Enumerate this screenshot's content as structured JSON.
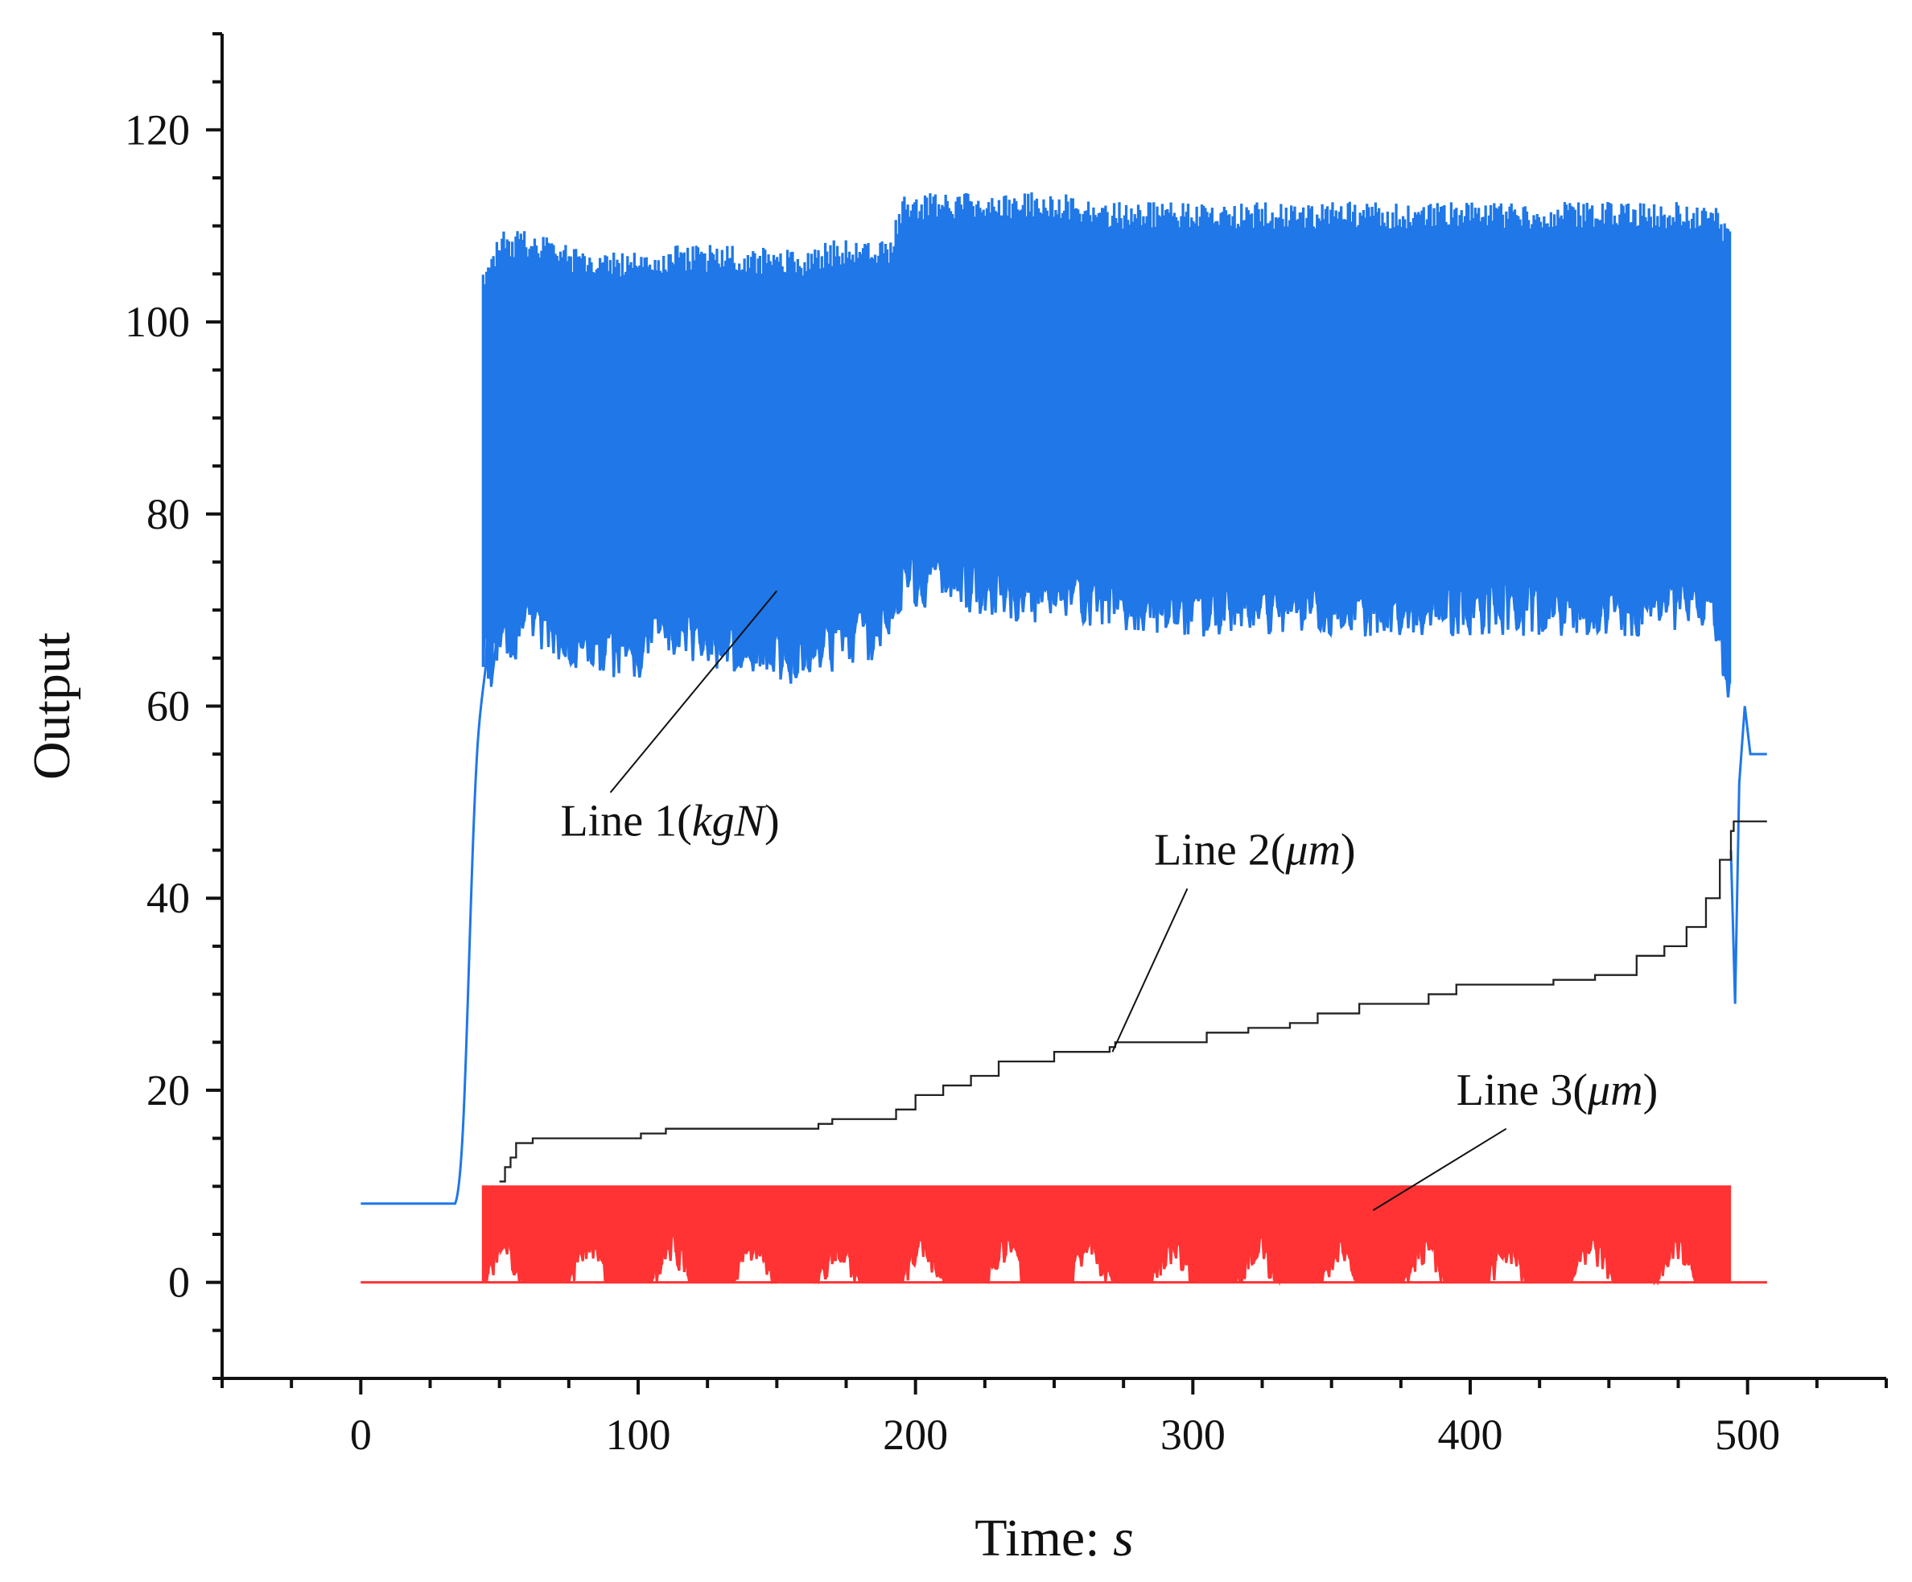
{
  "chart_data": {
    "type": "line",
    "title": "",
    "xlabel": "Time: s",
    "xlabel_parts": {
      "prefix": "Time: ",
      "unit": "s"
    },
    "ylabel": "Output",
    "xlim": [
      -50,
      550
    ],
    "ylim": [
      -10,
      130
    ],
    "xticks": [
      0,
      100,
      200,
      300,
      400,
      500
    ],
    "yticks": [
      0,
      20,
      40,
      60,
      80,
      100,
      120
    ],
    "x_minor_step": 25,
    "y_minor_step": 5,
    "grid": false,
    "colors": {
      "line1": "#1f77e8",
      "line2": "#222222",
      "line3": "#ff3333",
      "axis": "#111111"
    },
    "series": [
      {
        "name": "Line 1(kgN)",
        "label_prefix": "Line 1(",
        "label_unit": "kgN",
        "label_suffix": ")",
        "kind": "oscillating-band",
        "baseline": 8.2,
        "start_time": 38,
        "active_end_time": 494,
        "end_time": 507,
        "upper_envelope": [
          [
            44,
            104
          ],
          [
            50,
            108
          ],
          [
            60,
            108
          ],
          [
            80,
            106
          ],
          [
            105,
            106
          ],
          [
            110,
            106.5
          ],
          [
            130,
            106.5
          ],
          [
            160,
            106
          ],
          [
            170,
            107
          ],
          [
            190,
            107
          ],
          [
            196,
            112
          ],
          [
            250,
            112
          ],
          [
            270,
            111
          ],
          [
            300,
            111
          ],
          [
            350,
            111
          ],
          [
            400,
            111
          ],
          [
            450,
            111
          ],
          [
            470,
            111
          ],
          [
            488,
            111
          ],
          [
            494,
            108
          ]
        ],
        "lower_envelope": [
          [
            50,
            65
          ],
          [
            60,
            69
          ],
          [
            80,
            66
          ],
          [
            100,
            65
          ],
          [
            105,
            68
          ],
          [
            120,
            67
          ],
          [
            155,
            65
          ],
          [
            190,
            68
          ],
          [
            196,
            73
          ],
          [
            250,
            71
          ],
          [
            300,
            70
          ],
          [
            350,
            70
          ],
          [
            400,
            70
          ],
          [
            450,
            70
          ],
          [
            488,
            70
          ],
          [
            494,
            60
          ]
        ],
        "tail_points": [
          [
            494,
            45
          ],
          [
            495.5,
            29
          ],
          [
            497,
            52
          ],
          [
            499,
            60
          ],
          [
            501,
            55
          ],
          [
            507,
            55
          ]
        ]
      },
      {
        "name": "Line 2(μm)",
        "label_prefix": "Line 2(",
        "label_unit": "μm",
        "label_suffix": ")",
        "kind": "step",
        "points": [
          [
            50,
            10.5
          ],
          [
            52,
            12
          ],
          [
            54,
            13
          ],
          [
            56,
            14.5
          ],
          [
            60,
            14.5
          ],
          [
            62,
            15
          ],
          [
            100,
            15
          ],
          [
            101,
            15.5
          ],
          [
            110,
            16
          ],
          [
            150,
            16
          ],
          [
            165,
            16.5
          ],
          [
            170,
            17
          ],
          [
            190,
            17
          ],
          [
            193,
            18
          ],
          [
            200,
            19.5
          ],
          [
            210,
            20.5
          ],
          [
            220,
            21.5
          ],
          [
            230,
            23
          ],
          [
            250,
            24
          ],
          [
            270,
            24.5
          ],
          [
            272,
            25
          ],
          [
            300,
            25
          ],
          [
            305,
            26
          ],
          [
            320,
            26.5
          ],
          [
            335,
            27
          ],
          [
            345,
            28
          ],
          [
            360,
            29
          ],
          [
            385,
            30
          ],
          [
            395,
            31
          ],
          [
            430,
            31.5
          ],
          [
            445,
            32
          ],
          [
            460,
            34
          ],
          [
            470,
            35
          ],
          [
            478,
            37
          ],
          [
            485,
            40
          ],
          [
            490,
            44
          ],
          [
            494,
            47
          ],
          [
            495,
            48
          ],
          [
            507,
            48
          ]
        ]
      },
      {
        "name": "Line 3(μm)",
        "label_prefix": "Line 3(",
        "label_unit": "μm",
        "label_suffix": ")",
        "kind": "pulse",
        "baseline": 0,
        "high": 10,
        "start_time": 44,
        "end_time": 494,
        "plot_end": 507
      }
    ],
    "annotations": [
      {
        "text": "Line 1(kgN)",
        "series": "Line 1(kgN)",
        "label_xy": [
          72,
          46.5
        ],
        "arrow_from": [
          90,
          51
        ],
        "arrow_to": [
          150,
          72
        ]
      },
      {
        "text": "Line 2(μm)",
        "series": "Line 2(μm)",
        "label_xy": [
          286,
          43.5
        ],
        "arrow_from": [
          298,
          41
        ],
        "arrow_to": [
          271,
          24
        ]
      },
      {
        "text": "Line 3(μm)",
        "series": "Line 3(μm)",
        "label_xy": [
          395,
          18.5
        ],
        "arrow_from": [
          413,
          16
        ],
        "arrow_to": [
          365,
          7.5
        ]
      }
    ]
  }
}
